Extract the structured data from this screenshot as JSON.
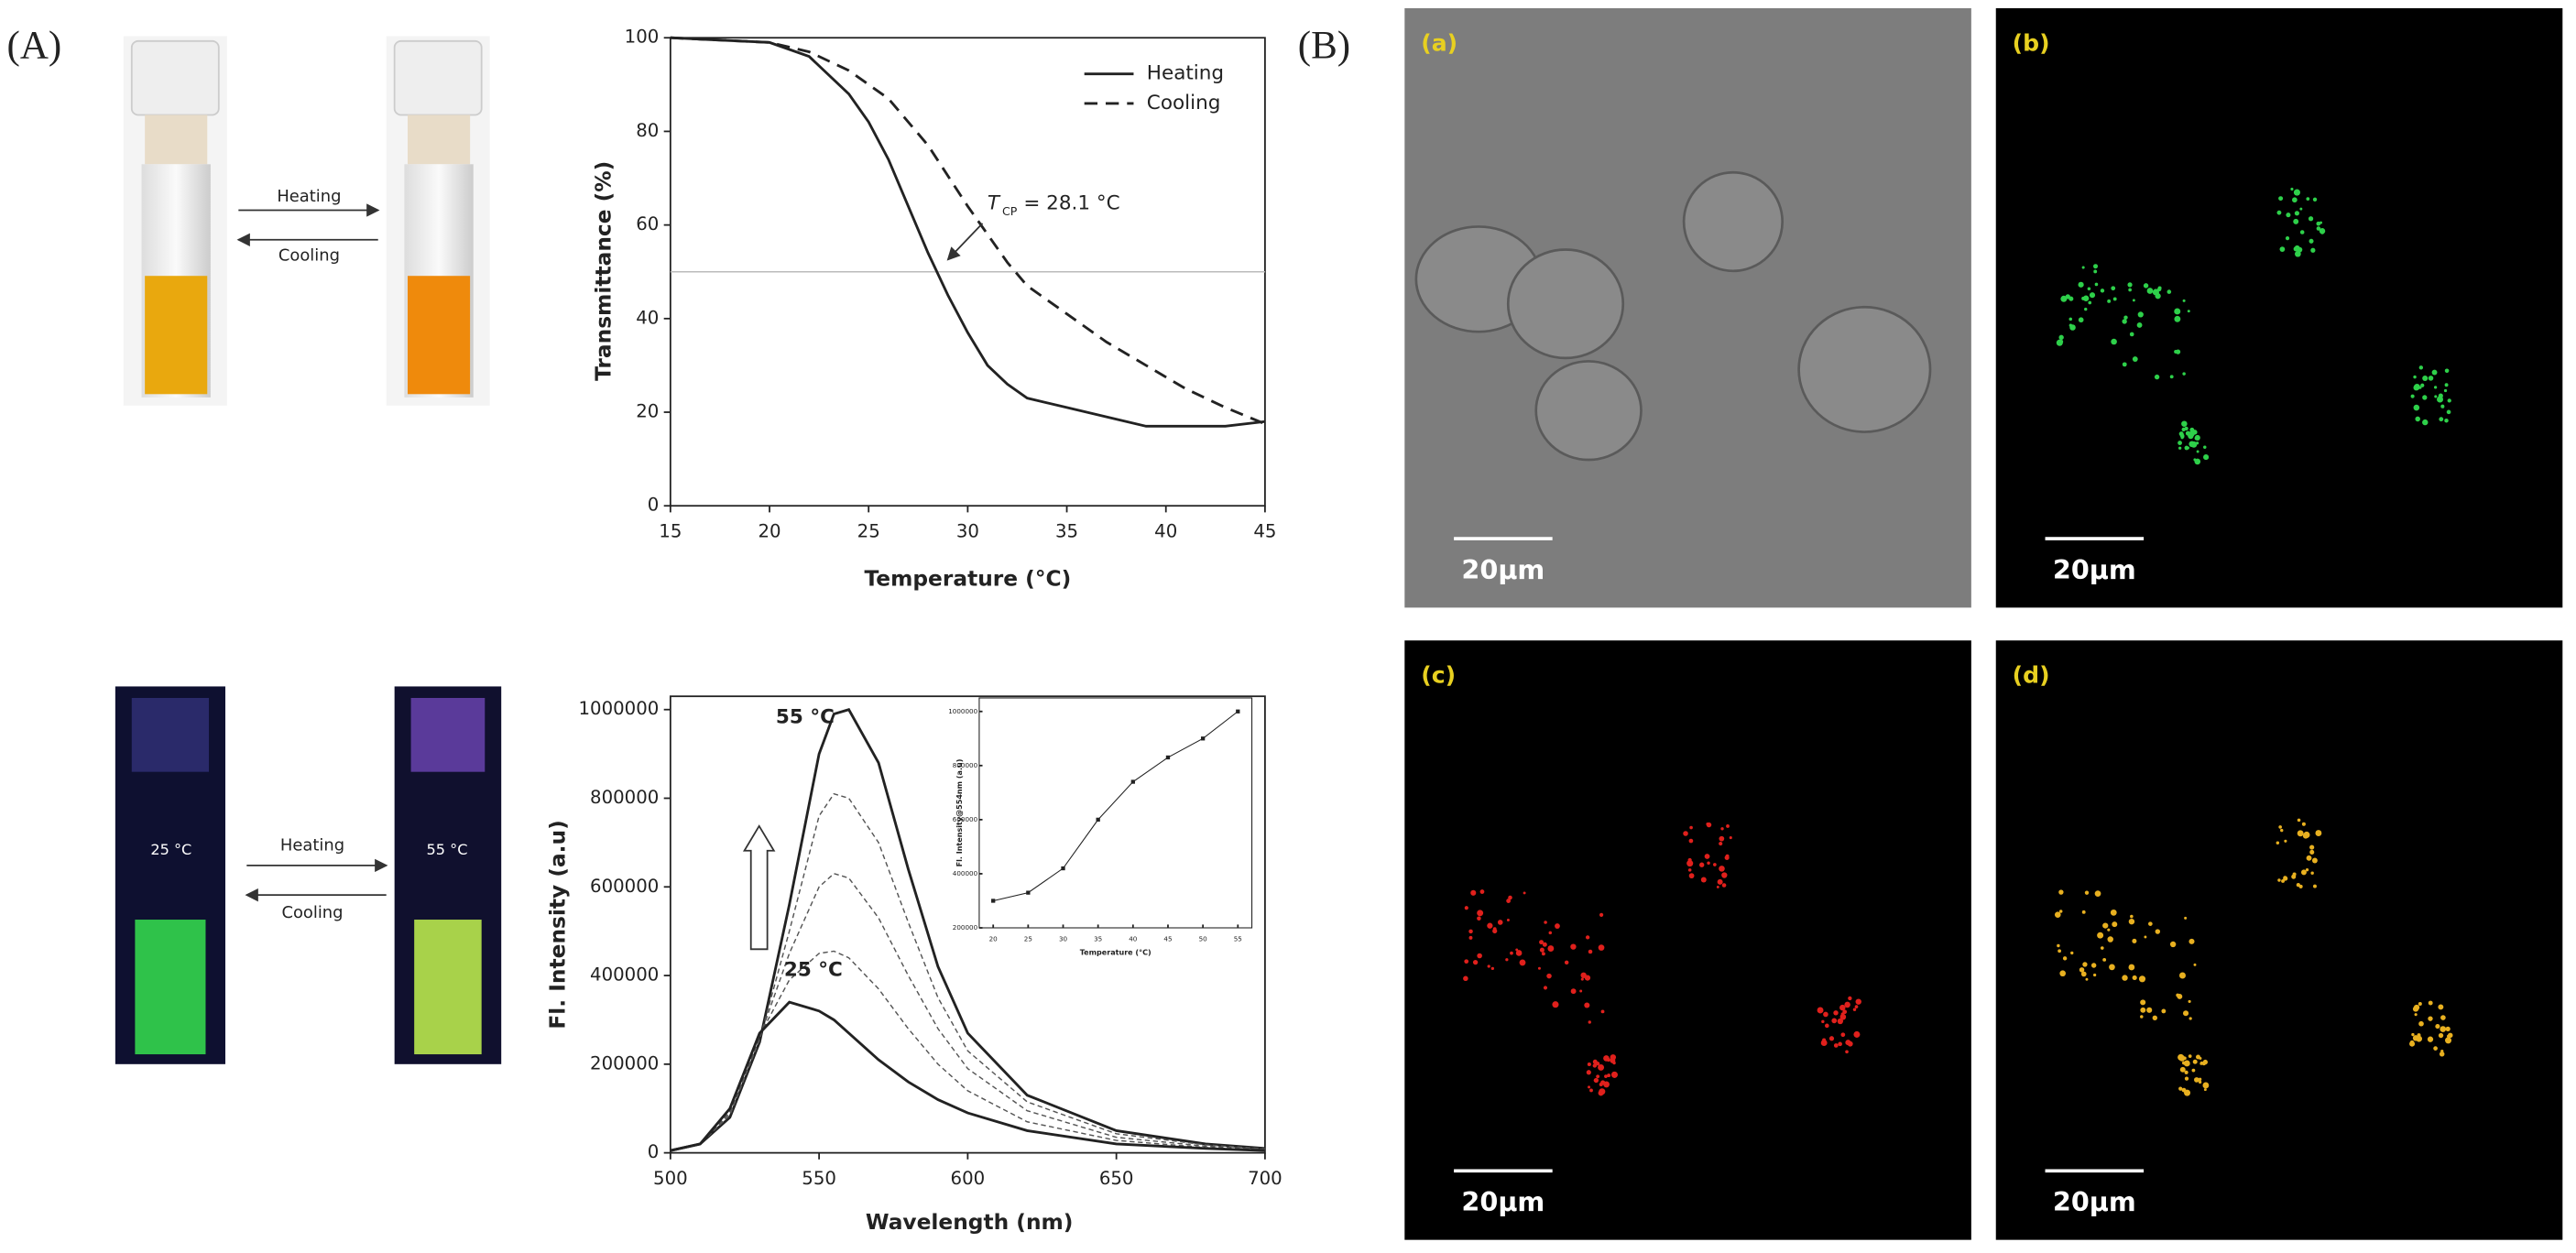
{
  "figure": {
    "panel_A": "(A)",
    "panel_B": "(B)",
    "top_photo": {
      "heating": "Heating",
      "cooling": "Cooling"
    },
    "bottom_photo": {
      "heating": "Heating",
      "cooling": "Cooling",
      "vial_left": "25 °C",
      "vial_right": "55 °C"
    },
    "images": [
      {
        "label": "(a)",
        "scale_bar": "20μm"
      },
      {
        "label": "(b)",
        "scale_bar": "20μm"
      },
      {
        "label": "(c)",
        "scale_bar": "20μm"
      },
      {
        "label": "(d)",
        "scale_bar": "20μm"
      }
    ]
  },
  "chart_data": [
    {
      "type": "line",
      "x_label": "Temperature (°C)",
      "y_label": "Transmittance (%)",
      "xlim": [
        15,
        45
      ],
      "xticks": [
        15,
        20,
        25,
        30,
        35,
        40,
        45
      ],
      "ylim": [
        0,
        100
      ],
      "yticks": [
        0,
        20,
        40,
        60,
        80,
        100
      ],
      "hline": 50,
      "legend": "upper right",
      "annotation": {
        "symbol": "T",
        "subscript": "CP",
        "text": "= 28.1 °C"
      },
      "series": [
        {
          "name": "Heating",
          "color": "#222222",
          "line_style": "solid",
          "x": [
            15,
            20,
            22,
            24,
            25,
            26,
            27,
            28,
            29,
            30,
            31,
            32,
            33,
            35,
            37,
            39,
            41,
            43,
            45
          ],
          "values": [
            100,
            99,
            96,
            88,
            82,
            74,
            64,
            54,
            45,
            37,
            30,
            26,
            23,
            21,
            19,
            17,
            17,
            17,
            18
          ]
        },
        {
          "name": "Cooling",
          "color": "#222222",
          "line_style": "dashed",
          "x": [
            15,
            20,
            22,
            24,
            26,
            28,
            30,
            31,
            32,
            33,
            35,
            37,
            39,
            41,
            43,
            45
          ],
          "values": [
            100,
            99,
            97,
            93,
            87,
            77,
            64,
            58,
            52,
            47,
            41,
            35,
            30,
            25,
            21,
            17.5
          ]
        }
      ]
    },
    {
      "type": "line",
      "x_label": "Wavelength (nm)",
      "y_label": "Fl. Intensity (a.u)",
      "xlim": [
        500,
        700
      ],
      "xticks": [
        500,
        550,
        600,
        650,
        700
      ],
      "ylim": [
        0,
        1030000
      ],
      "yticks": [
        0,
        200000,
        400000,
        600000,
        800000,
        1000000
      ],
      "curve_labels": [
        "55 °C",
        "25 °C"
      ],
      "x": [
        500,
        510,
        520,
        530,
        540,
        550,
        555,
        560,
        570,
        580,
        590,
        600,
        620,
        650,
        680,
        700
      ],
      "series": [
        {
          "name": "55 °C",
          "color": "#222222",
          "line_style": "solid",
          "values": [
            5000,
            20000,
            80000,
            250000,
            560000,
            900000,
            990000,
            1000000,
            880000,
            640000,
            420000,
            270000,
            130000,
            50000,
            20000,
            10000
          ]
        },
        {
          "color": "#555555",
          "line_style": "dashed",
          "values": [
            5000,
            20000,
            85000,
            255000,
            500000,
            760000,
            810000,
            800000,
            700000,
            520000,
            350000,
            230000,
            115000,
            43000,
            18000,
            9000
          ]
        },
        {
          "color": "#555555",
          "line_style": "dashed",
          "values": [
            5000,
            20000,
            90000,
            260000,
            450000,
            600000,
            630000,
            620000,
            530000,
            400000,
            280000,
            190000,
            95000,
            35000,
            15000,
            8000
          ]
        },
        {
          "color": "#555555",
          "line_style": "dashed",
          "values": [
            5000,
            20000,
            95000,
            265000,
            390000,
            450000,
            455000,
            440000,
            370000,
            280000,
            200000,
            140000,
            70000,
            28000,
            12000,
            6000
          ]
        },
        {
          "name": "25 °C",
          "color": "#222222",
          "line_style": "solid",
          "values": [
            5000,
            20000,
            100000,
            270000,
            340000,
            320000,
            300000,
            270000,
            210000,
            160000,
            120000,
            90000,
            50000,
            20000,
            10000,
            5000
          ]
        }
      ]
    },
    {
      "type": "line",
      "x_label": "Temperature (°C)",
      "y_label": "Fl. Intensity@554nm (a.u)",
      "xlim": [
        18,
        57
      ],
      "xticks": [
        20,
        25,
        30,
        35,
        40,
        45,
        50,
        55
      ],
      "ylim": [
        200000,
        1050000
      ],
      "yticks": [
        200000,
        400000,
        600000,
        800000,
        1000000
      ],
      "markers": true,
      "x": [
        20,
        25,
        30,
        35,
        40,
        45,
        50,
        55
      ],
      "series": [
        {
          "color": "#222222",
          "line_style": "solid",
          "values": [
            300000,
            330000,
            420000,
            600000,
            740000,
            830000,
            900000,
            1000000
          ]
        }
      ]
    }
  ]
}
